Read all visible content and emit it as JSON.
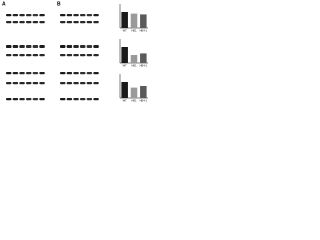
{
  "panels": {
    "a": "A",
    "b": "B"
  },
  "chart_data": [
    {
      "type": "bar",
      "categories": [
        "WT",
        "HE1",
        "HE4-1"
      ],
      "values": [
        1.0,
        0.9,
        0.85
      ],
      "colors": [
        "#1a1a1a",
        "#9a9a9a",
        "#5a5a5a"
      ],
      "ylim": [
        0,
        1.5
      ]
    },
    {
      "type": "bar",
      "categories": [
        "WT",
        "HE1",
        "HE4-1"
      ],
      "values": [
        1.0,
        0.5,
        0.6
      ],
      "colors": [
        "#1a1a1a",
        "#9a9a9a",
        "#5a5a5a"
      ],
      "ylim": [
        0,
        1.5
      ]
    },
    {
      "type": "bar",
      "categories": [
        "WT",
        "HE1",
        "HE4-1"
      ],
      "values": [
        1.0,
        0.65,
        0.75
      ],
      "colors": [
        "#1a1a1a",
        "#9a9a9a",
        "#5a5a5a"
      ],
      "ylim": [
        0,
        1.5
      ]
    }
  ]
}
